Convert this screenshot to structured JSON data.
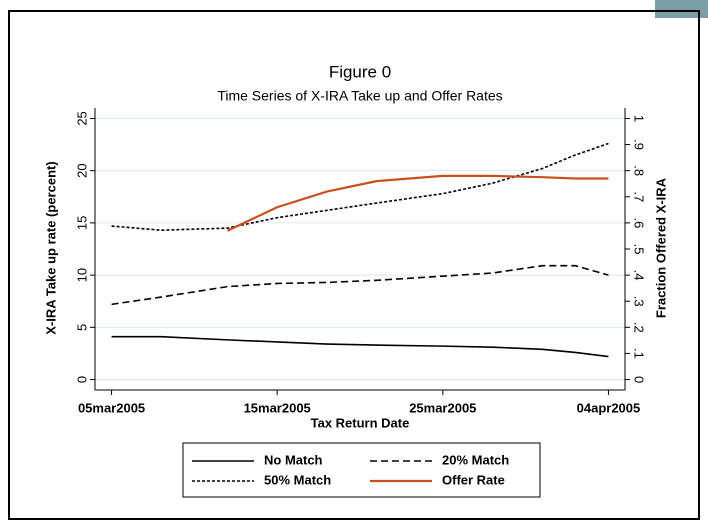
{
  "chart_data": {
    "type": "line",
    "title": "Figure 0",
    "subtitle": "Time Series of X-IRA Take up and Offer Rates",
    "x_label": "Tax Return Date",
    "y_label": "X-IRA Take up rate (percent)",
    "y2_label": "Fraction Offered X-IRA",
    "x": [
      "2005-03-05",
      "2005-03-08",
      "2005-03-12",
      "2005-03-15",
      "2005-03-18",
      "2005-03-21",
      "2005-03-25",
      "2005-03-28",
      "2005-03-31",
      "2005-04-02",
      "2005-04-04"
    ],
    "series": [
      {
        "name": "No Match",
        "color": "#000000",
        "line_style": "solid",
        "values": [
          4.1,
          4.1,
          3.8,
          3.6,
          3.4,
          3.3,
          3.2,
          3.1,
          2.9,
          2.6,
          2.2
        ]
      },
      {
        "name": "20% Match",
        "color": "#000000",
        "line_style": "dashed",
        "values": [
          7.2,
          7.9,
          8.9,
          9.2,
          9.3,
          9.5,
          9.9,
          10.2,
          10.9,
          10.9,
          10.0
        ]
      },
      {
        "name": "50% Match",
        "color": "#000000",
        "line_style": "dotted",
        "values": [
          14.7,
          14.3,
          14.5,
          15.5,
          16.2,
          16.9,
          17.8,
          18.8,
          20.2,
          21.5,
          22.6
        ]
      },
      {
        "name": "Offer Rate",
        "color": "#c8501e",
        "line_style": "solid",
        "axis": "y2",
        "values": [
          null,
          null,
          0.57,
          0.66,
          0.72,
          0.76,
          0.78,
          0.78,
          0.775,
          0.77,
          0.77
        ]
      }
    ],
    "xlim": [
      "2005-03-04",
      "2005-04-05"
    ],
    "xticks": [
      {
        "value": "2005-03-05",
        "label": "05mar2005"
      },
      {
        "value": "2005-03-15",
        "label": "15mar2005"
      },
      {
        "value": "2005-03-25",
        "label": "25mar2005"
      },
      {
        "value": "2005-04-04",
        "label": "04apr2005"
      }
    ],
    "ylim": [
      -1,
      26
    ],
    "yticks": [
      0,
      5,
      10,
      15,
      20,
      25
    ],
    "y2lim": [
      -0.04,
      1.04
    ],
    "y2ticks": [
      0,
      {
        "value": 0.1,
        "label": ".1"
      },
      {
        "value": 0.2,
        "label": ".2"
      },
      {
        "value": 0.3,
        "label": ".3"
      },
      {
        "value": 0.4,
        "label": ".4"
      },
      {
        "value": 0.5,
        "label": ".5"
      },
      {
        "value": 0.6,
        "label": ".6"
      },
      {
        "value": 0.7,
        "label": ".7"
      },
      {
        "value": 0.8,
        "label": ".8"
      },
      {
        "value": 0.9,
        "label": ".9"
      },
      1
    ],
    "grid": true,
    "legend": "bottom"
  }
}
